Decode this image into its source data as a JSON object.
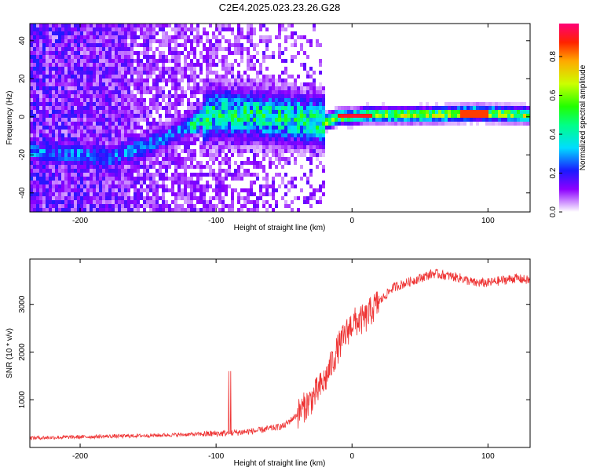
{
  "title": "C2E4.2025.023.23.26.G28",
  "chart_data": [
    {
      "type": "heatmap",
      "xlabel": "Height of straight line (km)",
      "ylabel": "Frequency (Hz)",
      "xlim": [
        -237,
        131
      ],
      "ylim": [
        -50,
        49
      ],
      "xticks": [
        -200,
        -100,
        0,
        100
      ],
      "yticks": [
        -40,
        -20,
        0,
        20,
        40
      ],
      "ridge_x": [
        -237,
        -200,
        -180,
        -150,
        -120,
        -100,
        -60,
        -30,
        -20,
        -10,
        0,
        10,
        20,
        60,
        90,
        131
      ],
      "ridge_y": [
        -18,
        -20,
        -22,
        -15,
        -5,
        2,
        0,
        -2,
        -3,
        0,
        0,
        1,
        1,
        1,
        2,
        1
      ],
      "colorbar": {
        "label": "Normalized spectral amplitude",
        "ticks": [
          "0.0",
          "0.2",
          "0.4",
          "0.6",
          "0.8"
        ],
        "range": [
          0,
          0.97
        ]
      }
    },
    {
      "type": "line",
      "xlabel": "Height of straight line (km)",
      "ylabel": "SNR (10 * v/v)",
      "xlim": [
        -237,
        131
      ],
      "ylim": [
        0,
        3950
      ],
      "xticks": [
        -200,
        -100,
        0,
        100
      ],
      "yticks": [
        1000,
        2000,
        3000
      ],
      "color": "#ee3333",
      "series": [
        {
          "x": [
            -237,
            -200,
            -150,
            -110,
            -90,
            -70,
            -50,
            -40,
            -30,
            -20,
            -10,
            0,
            10,
            15,
            20,
            30,
            40,
            50,
            60,
            70,
            80,
            90,
            100,
            110,
            120,
            131
          ],
          "y": [
            200,
            220,
            250,
            280,
            300,
            350,
            450,
            700,
            1000,
            1400,
            2100,
            2600,
            2700,
            2900,
            3050,
            3350,
            3450,
            3550,
            3650,
            3600,
            3550,
            3450,
            3450,
            3500,
            3550,
            3500
          ]
        }
      ]
    }
  ]
}
